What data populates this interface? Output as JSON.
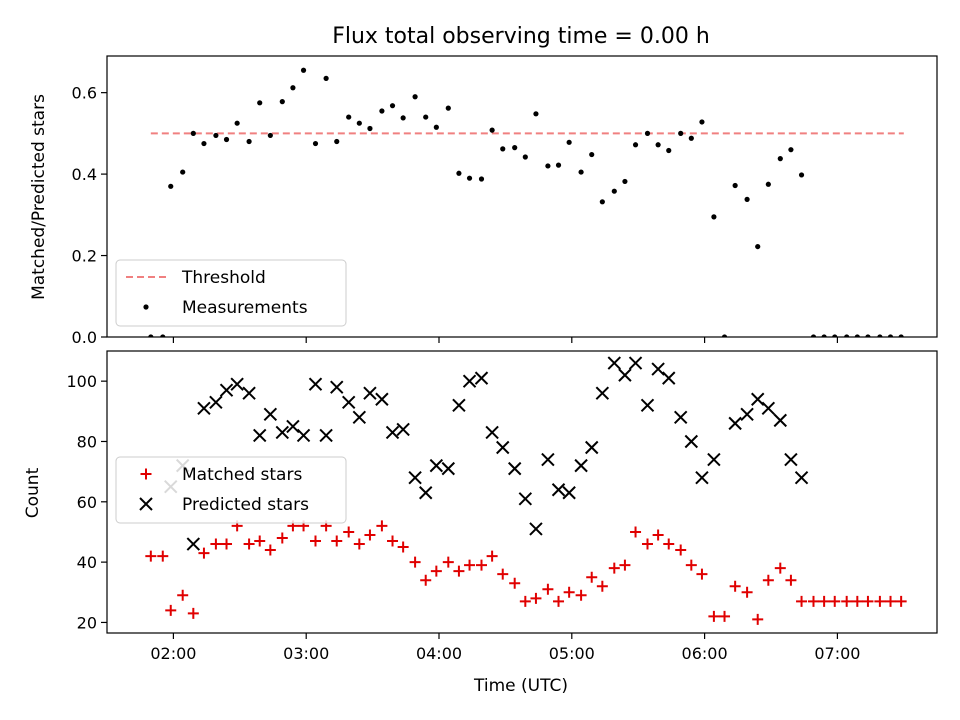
{
  "chart_data": [
    {
      "type": "scatter",
      "title": "Flux total observing time = 0.00 h",
      "ylabel": "Matched/Predicted stars",
      "ylim": [
        0,
        0.69
      ],
      "xlim": [
        1.5,
        7.75
      ],
      "yticks": [
        0.0,
        0.2,
        0.4,
        0.6
      ],
      "ytick_labels": [
        "0.0",
        "0.2",
        "0.4",
        "0.6"
      ],
      "xticks": [
        2,
        3,
        4,
        5,
        6,
        7
      ],
      "legend": {
        "placement": "lower-left",
        "entries": [
          "Threshold",
          "Measurements"
        ]
      },
      "threshold": {
        "name": "Threshold",
        "value": 0.5,
        "x_range": [
          1.83,
          7.5
        ],
        "color": "#f08080",
        "style": "dashed"
      },
      "series": [
        {
          "name": "Measurements",
          "color": "#000000",
          "marker": "dot",
          "x": [
            1.83,
            1.92,
            1.98,
            2.07,
            2.15,
            2.23,
            2.32,
            2.4,
            2.48,
            2.57,
            2.65,
            2.73,
            2.82,
            2.9,
            2.98,
            3.07,
            3.15,
            3.23,
            3.32,
            3.4,
            3.48,
            3.57,
            3.65,
            3.73,
            3.82,
            3.9,
            3.98,
            4.07,
            4.15,
            4.23,
            4.32,
            4.4,
            4.48,
            4.57,
            4.65,
            4.73,
            4.82,
            4.9,
            4.98,
            5.07,
            5.15,
            5.23,
            5.32,
            5.4,
            5.48,
            5.57,
            5.65,
            5.73,
            5.82,
            5.9,
            5.98,
            6.07,
            6.15,
            6.23,
            6.32,
            6.4,
            6.48,
            6.57,
            6.65,
            6.73,
            6.82,
            6.9,
            6.98,
            7.07,
            7.15,
            7.23,
            7.32,
            7.4,
            7.48
          ],
          "y": [
            0.0,
            0.0,
            0.37,
            0.405,
            0.5,
            0.475,
            0.495,
            0.485,
            0.525,
            0.48,
            0.575,
            0.495,
            0.578,
            0.612,
            0.655,
            0.475,
            0.635,
            0.48,
            0.54,
            0.525,
            0.512,
            0.555,
            0.568,
            0.538,
            0.59,
            0.54,
            0.515,
            0.562,
            0.402,
            0.39,
            0.388,
            0.508,
            0.462,
            0.465,
            0.442,
            0.548,
            0.42,
            0.422,
            0.478,
            0.405,
            0.448,
            0.332,
            0.358,
            0.382,
            0.472,
            0.5,
            0.472,
            0.458,
            0.5,
            0.488,
            0.528,
            0.295,
            0.0,
            0.372,
            0.338,
            0.222,
            0.375,
            0.438,
            0.46,
            0.398,
            0.0,
            0.0,
            0.0,
            0.0,
            0.0,
            0.0,
            0.0,
            0.0,
            0.0
          ]
        }
      ]
    },
    {
      "type": "scatter",
      "xlabel": "Time (UTC)",
      "ylabel": "Count",
      "ylim": [
        16.5,
        110
      ],
      "xlim": [
        1.5,
        7.75
      ],
      "yticks": [
        20,
        40,
        60,
        80,
        100
      ],
      "ytick_labels": [
        "20",
        "40",
        "60",
        "80",
        "100"
      ],
      "xticks": [
        2,
        3,
        4,
        5,
        6,
        7
      ],
      "xtick_labels": [
        "02:00",
        "03:00",
        "04:00",
        "05:00",
        "06:00",
        "07:00"
      ],
      "legend": {
        "placement": "center-left",
        "entries": [
          "Matched stars",
          "Predicted stars"
        ]
      },
      "series": [
        {
          "name": "Matched stars",
          "color": "#e00000",
          "marker": "plus",
          "x": [
            1.83,
            1.92,
            1.98,
            2.07,
            2.15,
            2.23,
            2.32,
            2.4,
            2.48,
            2.57,
            2.65,
            2.73,
            2.82,
            2.9,
            2.98,
            3.07,
            3.15,
            3.23,
            3.32,
            3.4,
            3.48,
            3.57,
            3.65,
            3.73,
            3.82,
            3.9,
            3.98,
            4.07,
            4.15,
            4.23,
            4.32,
            4.4,
            4.48,
            4.57,
            4.65,
            4.73,
            4.82,
            4.9,
            4.98,
            5.07,
            5.15,
            5.23,
            5.32,
            5.4,
            5.48,
            5.57,
            5.65,
            5.73,
            5.82,
            5.9,
            5.98,
            6.07,
            6.15,
            6.23,
            6.32,
            6.4,
            6.48,
            6.57,
            6.65,
            6.73,
            6.82,
            6.9,
            6.98,
            7.07,
            7.15,
            7.23,
            7.32,
            7.4,
            7.48
          ],
          "y": [
            42,
            42,
            24,
            29,
            23,
            43,
            46,
            46,
            52,
            46,
            47,
            44,
            48,
            52,
            52,
            47,
            52,
            47,
            50,
            46,
            49,
            52,
            47,
            45,
            40,
            34,
            37,
            40,
            37,
            39,
            39,
            42,
            36,
            33,
            27,
            28,
            31,
            27,
            30,
            29,
            35,
            32,
            38,
            39,
            50,
            46,
            49,
            46,
            44,
            39,
            36,
            22,
            22,
            32,
            30,
            21,
            34,
            38,
            34,
            27,
            27,
            27,
            27,
            27,
            27,
            27,
            27,
            27,
            27
          ]
        },
        {
          "name": "Predicted stars",
          "color": "#000000",
          "marker": "x",
          "x": [
            1.98,
            2.07,
            2.15,
            2.23,
            2.32,
            2.4,
            2.48,
            2.57,
            2.65,
            2.73,
            2.82,
            2.9,
            2.98,
            3.07,
            3.15,
            3.23,
            3.32,
            3.4,
            3.48,
            3.57,
            3.65,
            3.73,
            3.82,
            3.9,
            3.98,
            4.07,
            4.15,
            4.23,
            4.32,
            4.4,
            4.48,
            4.57,
            4.65,
            4.73,
            4.82,
            4.9,
            4.98,
            5.07,
            5.15,
            5.23,
            5.32,
            5.4,
            5.48,
            5.57,
            5.65,
            5.73,
            5.82,
            5.9,
            5.98,
            6.07,
            6.23,
            6.32,
            6.4,
            6.48,
            6.57,
            6.65,
            6.73
          ],
          "y": [
            65,
            72,
            46,
            91,
            93,
            97,
            99,
            96,
            82,
            89,
            83,
            85,
            82,
            99,
            82,
            98,
            93,
            88,
            96,
            94,
            83,
            84,
            68,
            63,
            72,
            71,
            92,
            100,
            101,
            83,
            78,
            71,
            61,
            51,
            74,
            64,
            63,
            72,
            78,
            96,
            106,
            102,
            106,
            92,
            104,
            101,
            88,
            80,
            68,
            74,
            86,
            89,
            94,
            91,
            87,
            74,
            68
          ]
        }
      ]
    }
  ]
}
